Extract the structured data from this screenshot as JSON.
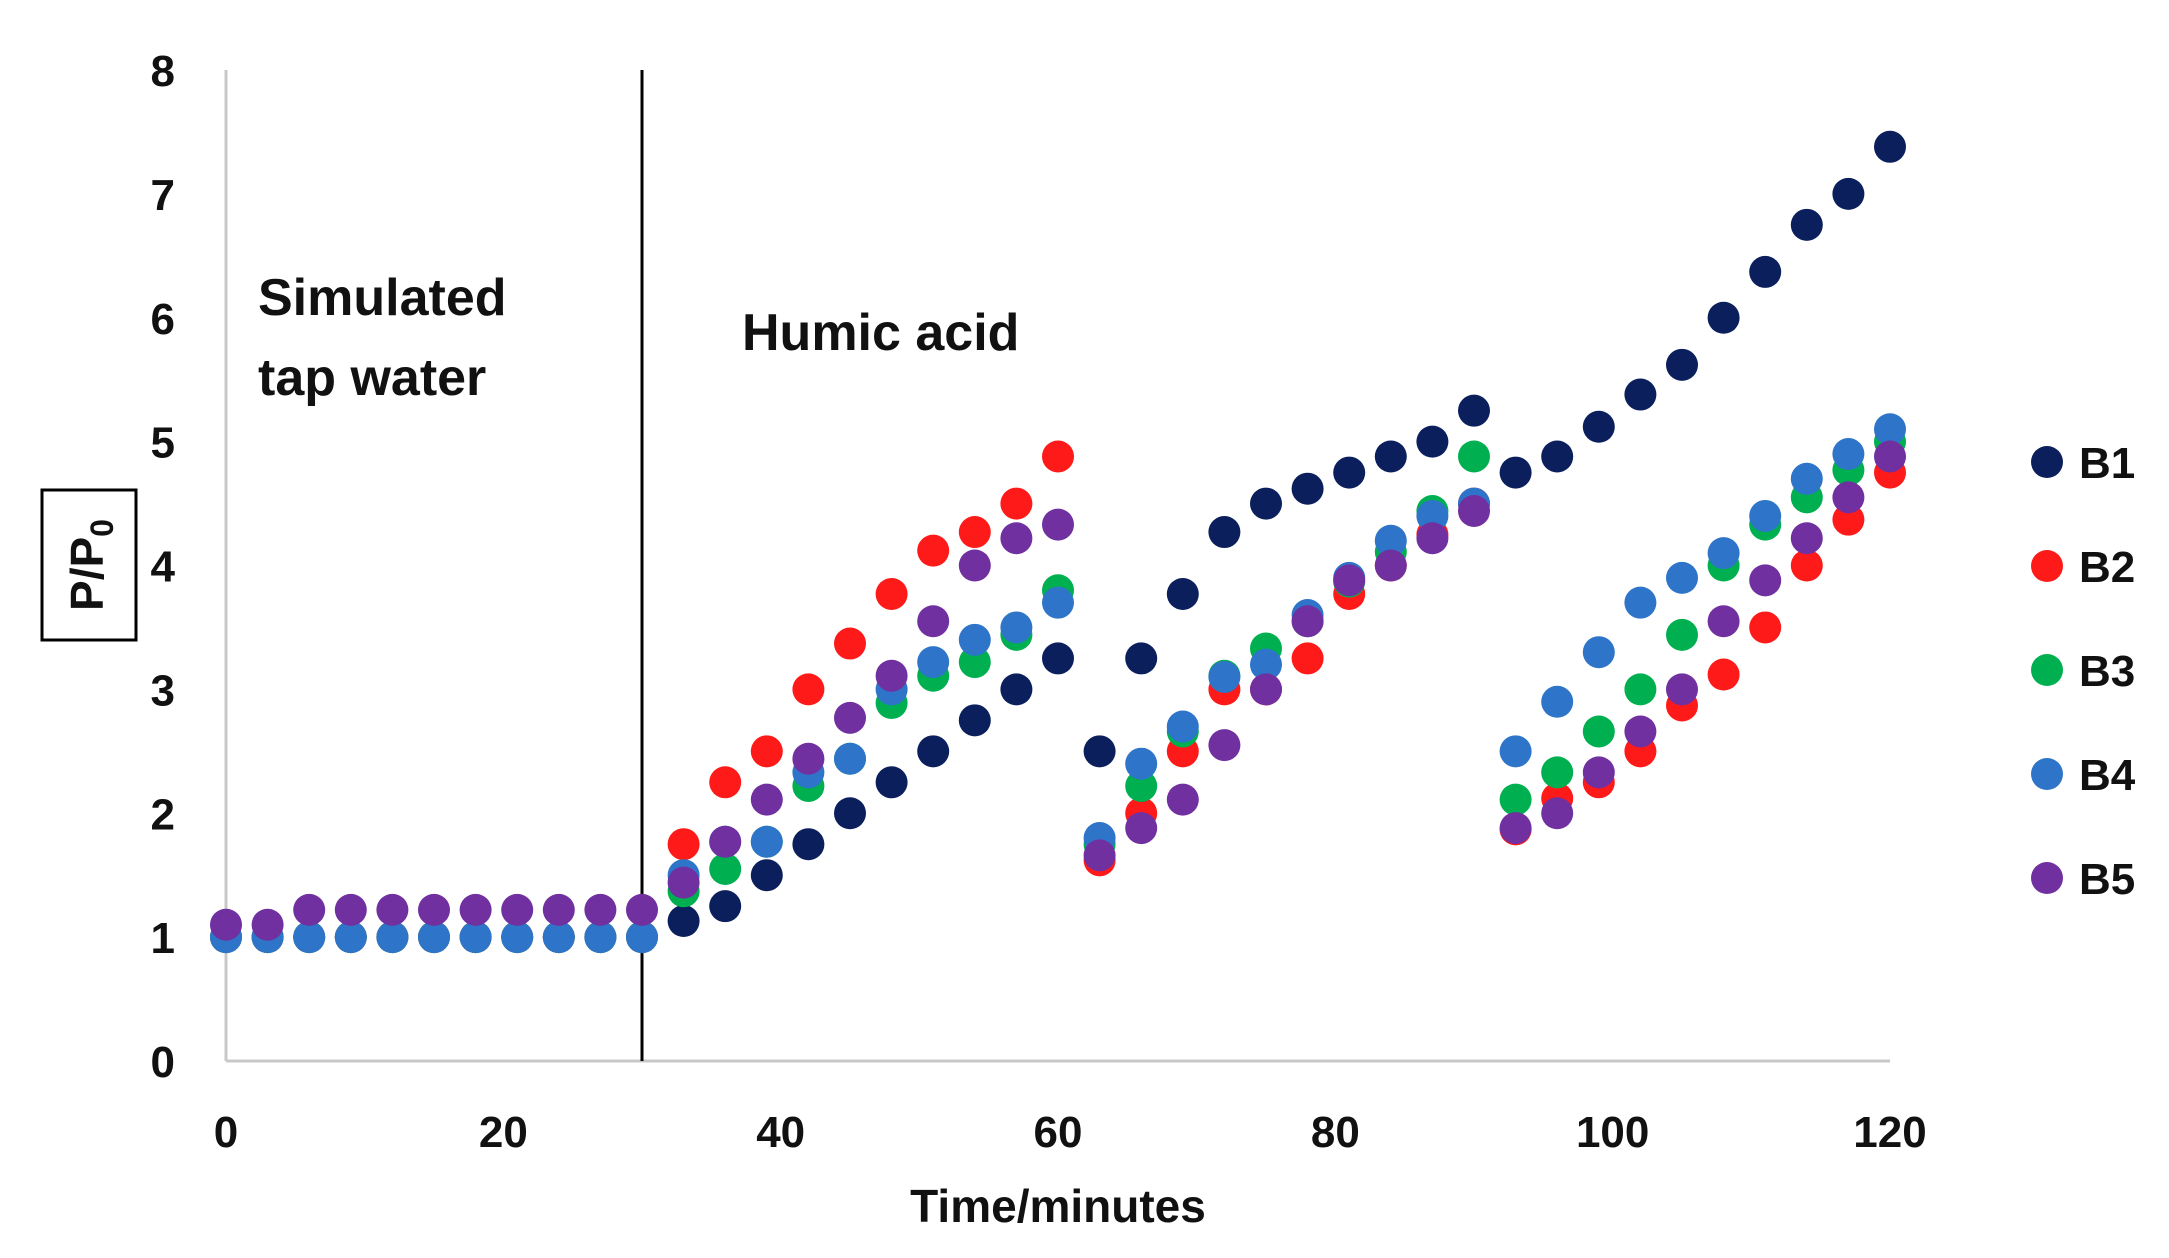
{
  "chart_data": {
    "type": "scatter",
    "xlabel": "Time/minutes",
    "ylabel": "P/P",
    "ylabel_subscript": "0",
    "xlim": [
      0,
      120
    ],
    "ylim": [
      0,
      8
    ],
    "x_ticks": [
      0,
      20,
      40,
      60,
      80,
      100,
      120
    ],
    "y_ticks": [
      0,
      1,
      2,
      3,
      4,
      5,
      6,
      7,
      8
    ],
    "divider_x": 30,
    "annotations": [
      {
        "id": "tap",
        "lines": [
          "Simulated",
          "tap water"
        ]
      },
      {
        "id": "humic",
        "lines": [
          "Humic acid"
        ]
      }
    ],
    "legend_position": "right",
    "x": [
      0,
      3,
      6,
      9,
      12,
      15,
      18,
      21,
      24,
      27,
      30,
      33,
      36,
      39,
      42,
      45,
      48,
      51,
      54,
      57,
      60,
      63,
      66,
      69,
      72,
      75,
      78,
      81,
      84,
      87,
      90,
      93,
      96,
      99,
      102,
      105,
      108,
      111,
      114,
      117,
      120
    ],
    "series": [
      {
        "name": "B1",
        "color": "#0b1f5c",
        "values": [
          1.0,
          1.0,
          1.0,
          1.0,
          1.0,
          1.0,
          1.0,
          1.0,
          1.0,
          1.0,
          1.0,
          1.13,
          1.25,
          1.5,
          1.75,
          2.0,
          2.25,
          2.5,
          2.75,
          3.0,
          3.25,
          2.5,
          3.25,
          3.77,
          4.27,
          4.5,
          4.62,
          4.75,
          4.88,
          5.0,
          5.25,
          4.75,
          4.88,
          5.12,
          5.38,
          5.62,
          6.0,
          6.37,
          6.75,
          7.0,
          7.38
        ]
      },
      {
        "name": "B2",
        "color": "#ff1a1a",
        "values": [
          1.0,
          1.0,
          1.0,
          1.0,
          1.0,
          1.0,
          1.0,
          1.0,
          1.0,
          1.0,
          1.0,
          1.75,
          2.25,
          2.5,
          3.0,
          3.37,
          3.77,
          4.12,
          4.27,
          4.5,
          4.88,
          1.62,
          2.0,
          2.5,
          3.0,
          3.0,
          3.25,
          3.77,
          4.0,
          4.25,
          4.5,
          1.87,
          2.12,
          2.25,
          2.5,
          2.87,
          3.12,
          3.5,
          4.0,
          4.37,
          4.75
        ]
      },
      {
        "name": "B3",
        "color": "#00b050",
        "values": [
          1.0,
          1.0,
          1.0,
          1.0,
          1.0,
          1.0,
          1.0,
          1.0,
          1.0,
          1.0,
          1.0,
          1.37,
          1.55,
          1.77,
          2.22,
          2.44,
          2.89,
          3.11,
          3.22,
          3.44,
          3.8,
          1.75,
          2.22,
          2.66,
          3.11,
          3.33,
          3.55,
          3.87,
          4.11,
          4.44,
          4.88,
          2.11,
          2.33,
          2.66,
          3.0,
          3.44,
          4.0,
          4.33,
          4.55,
          4.77,
          5.0
        ]
      },
      {
        "name": "B4",
        "color": "#2e75c9",
        "values": [
          1.0,
          1.0,
          1.0,
          1.0,
          1.0,
          1.0,
          1.0,
          1.0,
          1.0,
          1.0,
          1.0,
          1.5,
          1.77,
          1.77,
          2.33,
          2.44,
          3.0,
          3.22,
          3.4,
          3.5,
          3.7,
          1.8,
          2.4,
          2.7,
          3.1,
          3.2,
          3.6,
          3.9,
          4.2,
          4.4,
          4.5,
          2.5,
          2.9,
          3.3,
          3.7,
          3.9,
          4.1,
          4.4,
          4.7,
          4.9,
          5.1
        ]
      },
      {
        "name": "B5",
        "color": "#7030a0",
        "values": [
          1.1,
          1.1,
          1.22,
          1.22,
          1.22,
          1.22,
          1.22,
          1.22,
          1.22,
          1.22,
          1.22,
          1.44,
          1.77,
          2.11,
          2.44,
          2.77,
          3.11,
          3.55,
          4.0,
          4.22,
          4.33,
          1.66,
          1.88,
          2.11,
          2.55,
          3.0,
          3.55,
          3.88,
          4.0,
          4.22,
          4.44,
          1.88,
          2.0,
          2.33,
          2.66,
          3.0,
          3.55,
          3.88,
          4.22,
          4.55,
          4.88
        ]
      }
    ]
  }
}
